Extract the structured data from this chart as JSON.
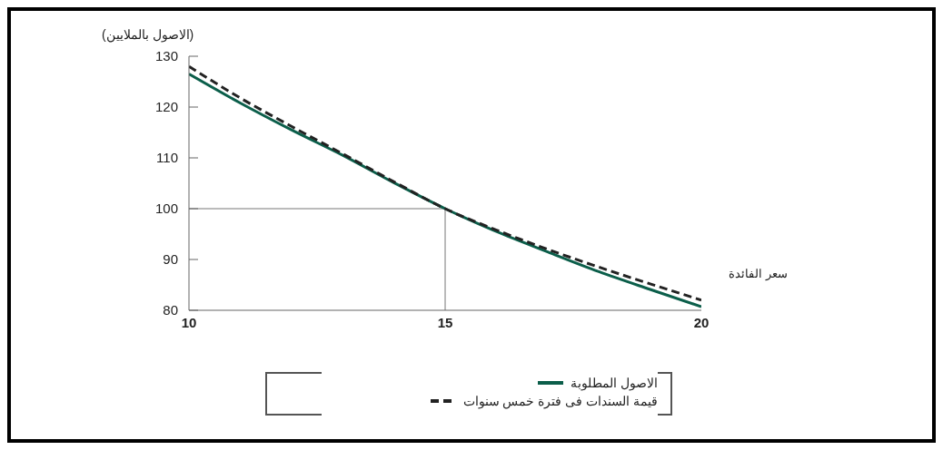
{
  "chart_data": {
    "type": "line",
    "xlabel": "سعر الفائدة",
    "ylabel": "(الاصول بالملايين)",
    "x": [
      10,
      11,
      12,
      13,
      14,
      15,
      16,
      17,
      18,
      19,
      20
    ],
    "series": [
      {
        "name": "الاصول المطلوبة",
        "color": "#0b5e4a",
        "line_style": "solid",
        "values": [
          126.5,
          120.8,
          115.5,
          110.5,
          105.1,
          100,
          95.5,
          91.5,
          87.6,
          84.1,
          80.7
        ]
      },
      {
        "name": "قيمة السندات فى فترة خمس سنوات",
        "color": "#222222",
        "line_style": "dashed",
        "values": [
          128,
          121.8,
          116.2,
          110.8,
          105.3,
          100,
          95.8,
          92,
          88.5,
          85.2,
          82
        ]
      }
    ],
    "xlim": [
      10,
      20
    ],
    "xticks": [
      10,
      15,
      20
    ],
    "ylim": [
      80,
      130
    ],
    "yticks": [
      80,
      90,
      100,
      110,
      120,
      130
    ],
    "ref_lines": [
      {
        "axis": "y",
        "value": 100,
        "color": "#777777"
      },
      {
        "axis": "x",
        "value": 15,
        "color": "#777777"
      }
    ],
    "grid": false,
    "legend": "bottom",
    "marker": "none"
  }
}
